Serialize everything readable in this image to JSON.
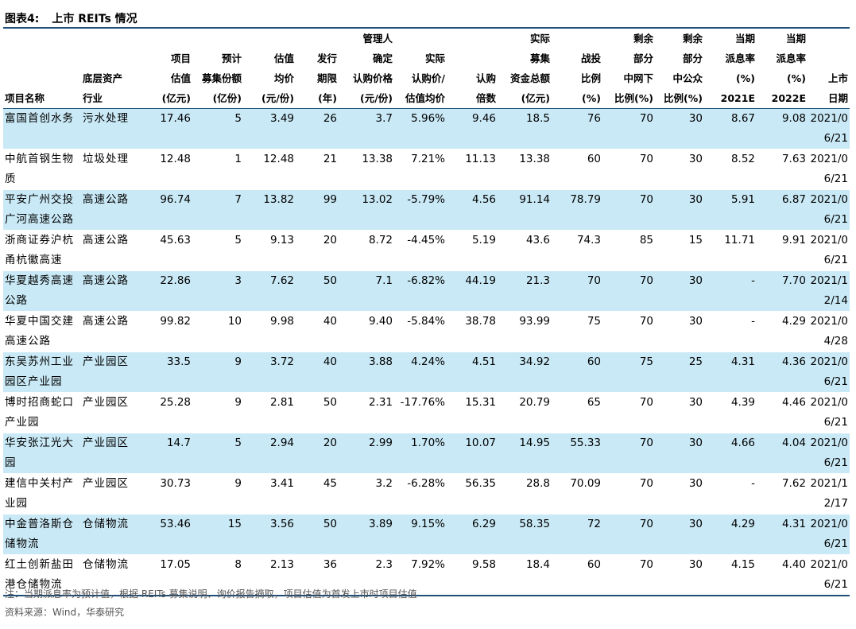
{
  "title": {
    "label": "图表4:",
    "text": "上市 REITs 情况"
  },
  "columns": [
    {
      "key": "name",
      "lines": [
        "项目名称"
      ]
    },
    {
      "key": "industry",
      "lines": [
        "底层资产",
        "行业"
      ]
    },
    {
      "key": "valuation",
      "lines": [
        "项目",
        "估值",
        "(亿元)"
      ]
    },
    {
      "key": "shares",
      "lines": [
        "预计",
        "募集份额",
        "(亿份)"
      ]
    },
    {
      "key": "avg_price",
      "lines": [
        "估值",
        "均价",
        "(元/份)"
      ]
    },
    {
      "key": "term",
      "lines": [
        "发行",
        "期限",
        "(年)"
      ]
    },
    {
      "key": "sub_price",
      "lines": [
        "管理人",
        "确定",
        "认购价格",
        "(元/份)"
      ]
    },
    {
      "key": "sub_ratio",
      "lines": [
        "实际",
        "认购价/",
        "估值均价"
      ]
    },
    {
      "key": "times",
      "lines": [
        "认购",
        "倍数"
      ]
    },
    {
      "key": "raised",
      "lines": [
        "实际",
        "募集",
        "资金总额",
        "(亿元)"
      ]
    },
    {
      "key": "strategic",
      "lines": [
        "战投",
        "比例",
        "(%)"
      ]
    },
    {
      "key": "offline",
      "lines": [
        "剩余",
        "部分",
        "中网下",
        "比例(%)"
      ]
    },
    {
      "key": "public",
      "lines": [
        "剩余",
        "部分",
        "中公众",
        "比例(%)"
      ]
    },
    {
      "key": "yield21",
      "lines": [
        "当期",
        "派息率",
        "(%)",
        "2021E"
      ]
    },
    {
      "key": "yield22",
      "lines": [
        "当期",
        "派息率",
        "(%)",
        "2022E"
      ]
    },
    {
      "key": "date",
      "lines": [
        "上市",
        "日期"
      ]
    }
  ],
  "rows": [
    {
      "name": "富国首创水务",
      "industry": "污水处理",
      "valuation": "17.46",
      "shares": "5",
      "avg_price": "3.49",
      "term": "26",
      "sub_price": "3.7",
      "sub_ratio": "5.96%",
      "times": "9.46",
      "raised": "18.5",
      "strategic": "76",
      "offline": "70",
      "public": "30",
      "yield21": "8.67",
      "yield22": "9.08",
      "date": "2021/06/21"
    },
    {
      "name": "中航首钢生物质",
      "industry": "垃圾处理",
      "valuation": "12.48",
      "shares": "1",
      "avg_price": "12.48",
      "term": "21",
      "sub_price": "13.38",
      "sub_ratio": "7.21%",
      "times": "11.13",
      "raised": "13.38",
      "strategic": "60",
      "offline": "70",
      "public": "30",
      "yield21": "8.52",
      "yield22": "7.63",
      "date": "2021/06/21"
    },
    {
      "name": "平安广州交投广河高速公路",
      "industry": "高速公路",
      "valuation": "96.74",
      "shares": "7",
      "avg_price": "13.82",
      "term": "99",
      "sub_price": "13.02",
      "sub_ratio": "-5.79%",
      "times": "4.56",
      "raised": "91.14",
      "strategic": "78.79",
      "offline": "70",
      "public": "30",
      "yield21": "5.91",
      "yield22": "6.87",
      "date": "2021/06/21"
    },
    {
      "name": "浙商证券沪杭甬杭徽高速",
      "industry": "高速公路",
      "valuation": "45.63",
      "shares": "5",
      "avg_price": "9.13",
      "term": "20",
      "sub_price": "8.72",
      "sub_ratio": "-4.45%",
      "times": "5.19",
      "raised": "43.6",
      "strategic": "74.3",
      "offline": "85",
      "public": "15",
      "yield21": "11.71",
      "yield22": "9.91",
      "date": "2021/06/21"
    },
    {
      "name": "华夏越秀高速公路",
      "industry": "高速公路",
      "valuation": "22.86",
      "shares": "3",
      "avg_price": "7.62",
      "term": "50",
      "sub_price": "7.1",
      "sub_ratio": "-6.82%",
      "times": "44.19",
      "raised": "21.3",
      "strategic": "70",
      "offline": "70",
      "public": "30",
      "yield21": "-",
      "yield22": "7.70",
      "date": "2021/12/14"
    },
    {
      "name": "华夏中国交建高速公路",
      "industry": "高速公路",
      "valuation": "99.82",
      "shares": "10",
      "avg_price": "9.98",
      "term": "40",
      "sub_price": "9.40",
      "sub_ratio": "-5.84%",
      "times": "38.78",
      "raised": "93.99",
      "strategic": "75",
      "offline": "70",
      "public": "30",
      "yield21": "-",
      "yield22": "4.29",
      "date": "2021/04/28"
    },
    {
      "name": "东吴苏州工业园区产业园",
      "industry": "产业园区",
      "valuation": "33.5",
      "shares": "9",
      "avg_price": "3.72",
      "term": "40",
      "sub_price": "3.88",
      "sub_ratio": "4.24%",
      "times": "4.51",
      "raised": "34.92",
      "strategic": "60",
      "offline": "75",
      "public": "25",
      "yield21": "4.31",
      "yield22": "4.36",
      "date": "2021/06/21"
    },
    {
      "name": "博时招商蛇口产业园",
      "industry": "产业园区",
      "valuation": "25.28",
      "shares": "9",
      "avg_price": "2.81",
      "term": "50",
      "sub_price": "2.31",
      "sub_ratio": "-17.76%",
      "times": "15.31",
      "raised": "20.79",
      "strategic": "65",
      "offline": "70",
      "public": "30",
      "yield21": "4.39",
      "yield22": "4.46",
      "date": "2021/06/21"
    },
    {
      "name": "华安张江光大园",
      "industry": "产业园区",
      "valuation": "14.7",
      "shares": "5",
      "avg_price": "2.94",
      "term": "20",
      "sub_price": "2.99",
      "sub_ratio": "1.70%",
      "times": "10.07",
      "raised": "14.95",
      "strategic": "55.33",
      "offline": "70",
      "public": "30",
      "yield21": "4.66",
      "yield22": "4.04",
      "date": "2021/06/21"
    },
    {
      "name": "建信中关村产业园",
      "industry": "产业园区",
      "valuation": "30.73",
      "shares": "9",
      "avg_price": "3.41",
      "term": "45",
      "sub_price": "3.2",
      "sub_ratio": "-6.28%",
      "times": "56.35",
      "raised": "28.8",
      "strategic": "70.09",
      "offline": "70",
      "public": "30",
      "yield21": "-",
      "yield22": "7.62",
      "date": "2021/12/17"
    },
    {
      "name": "中金普洛斯仓储物流",
      "industry": "仓储物流",
      "valuation": "53.46",
      "shares": "15",
      "avg_price": "3.56",
      "term": "50",
      "sub_price": "3.89",
      "sub_ratio": "9.15%",
      "times": "6.29",
      "raised": "58.35",
      "strategic": "72",
      "offline": "70",
      "public": "30",
      "yield21": "4.29",
      "yield22": "4.31",
      "date": "2021/06/21"
    },
    {
      "name": "红土创新盐田港仓储物流",
      "industry": "仓储物流",
      "valuation": "17.05",
      "shares": "8",
      "avg_price": "2.13",
      "term": "36",
      "sub_price": "2.3",
      "sub_ratio": "7.92%",
      "times": "9.58",
      "raised": "18.4",
      "strategic": "60",
      "offline": "70",
      "public": "30",
      "yield21": "4.15",
      "yield22": "4.40",
      "date": "2021/06/21"
    }
  ],
  "footnote": "注：当期派息率为预计值，根据 REITs 募集说明、询价报告摘取，项目估值为首发上市时项目估值",
  "source": "资料来源：Wind，华泰研究"
}
